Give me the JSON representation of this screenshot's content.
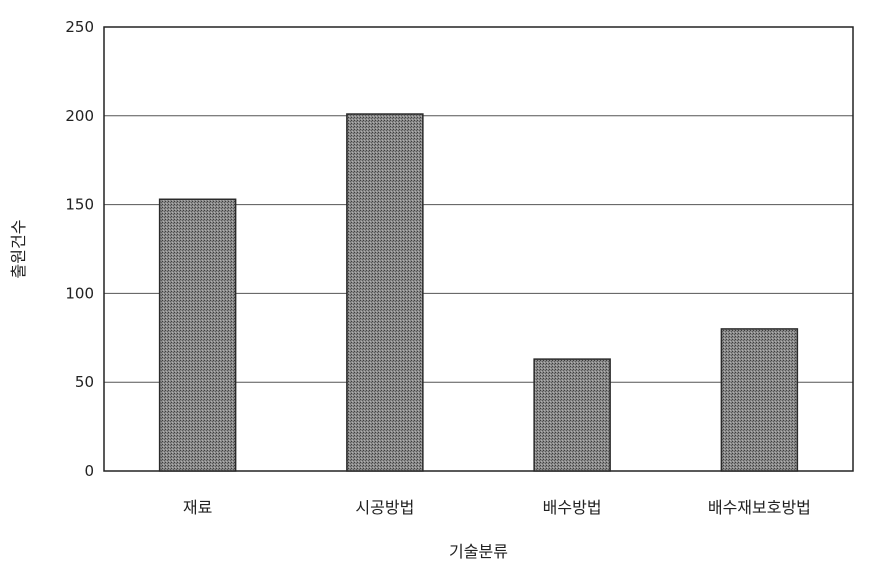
{
  "chart_data": {
    "type": "bar",
    "categories": [
      "재료",
      "시공방법",
      "배수방법",
      "배수재보호방법"
    ],
    "values": [
      153,
      201,
      63,
      80
    ],
    "xlabel": "기술분류",
    "ylabel": "출원건수",
    "ylim": [
      0,
      250
    ],
    "yticks": [
      0,
      50,
      100,
      150,
      200,
      250
    ],
    "grid": true,
    "legend": "none",
    "bar_color": "#7a7a7a",
    "bar_edge_color": "#2a2a2a",
    "grid_color": "#555555"
  }
}
